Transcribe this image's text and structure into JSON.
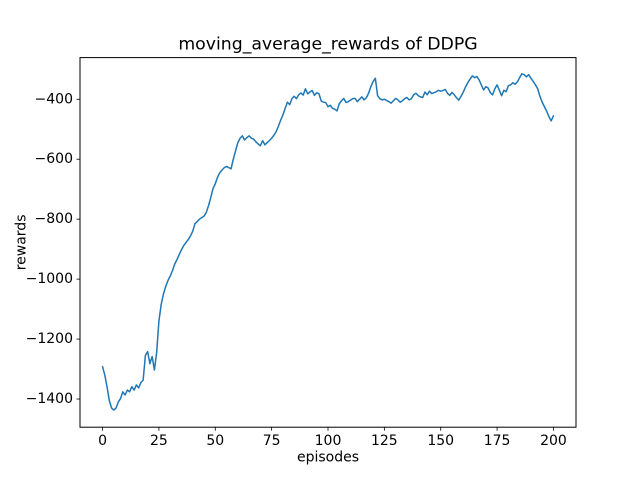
{
  "chart_data": {
    "type": "line",
    "title": "moving_average_rewards of DDPG",
    "xlabel": "episodes",
    "ylabel": "rewards",
    "legend": null,
    "grid": false,
    "line_color": "#1f77b4",
    "background_color": "#ffffff",
    "axes_color": "#000000",
    "xlim": [
      -10,
      210
    ],
    "ylim": [
      -1494,
      -261
    ],
    "x_ticks": [
      0,
      25,
      50,
      75,
      100,
      125,
      150,
      175,
      200
    ],
    "x_tick_labels": [
      "0",
      "25",
      "50",
      "75",
      "100",
      "125",
      "150",
      "175",
      "200"
    ],
    "y_ticks": [
      -400,
      -600,
      -800,
      -1000,
      -1200,
      -1400
    ],
    "y_tick_labels": [
      "−400",
      "−600",
      "−800",
      "−1000",
      "−1200",
      "−1400"
    ],
    "series": [
      {
        "name": "moving_average_rewards",
        "x_start": 0,
        "x_step": 1,
        "values": [
          -1292,
          -1320,
          -1360,
          -1405,
          -1430,
          -1437,
          -1430,
          -1410,
          -1398,
          -1376,
          -1387,
          -1370,
          -1376,
          -1359,
          -1370,
          -1353,
          -1363,
          -1345,
          -1337,
          -1255,
          -1242,
          -1282,
          -1258,
          -1303,
          -1245,
          -1140,
          -1085,
          -1050,
          -1025,
          -1005,
          -990,
          -972,
          -950,
          -935,
          -918,
          -902,
          -888,
          -878,
          -868,
          -856,
          -840,
          -815,
          -808,
          -800,
          -795,
          -790,
          -778,
          -755,
          -728,
          -698,
          -682,
          -660,
          -645,
          -636,
          -628,
          -624,
          -628,
          -632,
          -600,
          -572,
          -545,
          -530,
          -522,
          -536,
          -528,
          -522,
          -530,
          -533,
          -542,
          -549,
          -555,
          -538,
          -552,
          -545,
          -538,
          -530,
          -520,
          -508,
          -490,
          -470,
          -452,
          -430,
          -410,
          -418,
          -398,
          -390,
          -398,
          -385,
          -379,
          -386,
          -365,
          -382,
          -375,
          -371,
          -387,
          -378,
          -382,
          -406,
          -410,
          -411,
          -425,
          -420,
          -430,
          -433,
          -439,
          -415,
          -405,
          -397,
          -411,
          -408,
          -403,
          -398,
          -397,
          -408,
          -400,
          -392,
          -402,
          -395,
          -380,
          -358,
          -341,
          -330,
          -388,
          -398,
          -402,
          -400,
          -404,
          -408,
          -413,
          -405,
          -397,
          -402,
          -410,
          -405,
          -398,
          -394,
          -402,
          -398,
          -385,
          -380,
          -388,
          -392,
          -394,
          -376,
          -385,
          -373,
          -381,
          -378,
          -375,
          -370,
          -373,
          -371,
          -367,
          -380,
          -387,
          -377,
          -385,
          -395,
          -403,
          -390,
          -376,
          -359,
          -345,
          -333,
          -322,
          -328,
          -324,
          -335,
          -352,
          -369,
          -358,
          -362,
          -378,
          -385,
          -365,
          -352,
          -370,
          -388,
          -370,
          -375,
          -355,
          -352,
          -345,
          -350,
          -342,
          -328,
          -315,
          -318,
          -325,
          -318,
          -330,
          -340,
          -352,
          -365,
          -390,
          -410,
          -425,
          -440,
          -458,
          -472,
          -455
        ]
      }
    ]
  }
}
